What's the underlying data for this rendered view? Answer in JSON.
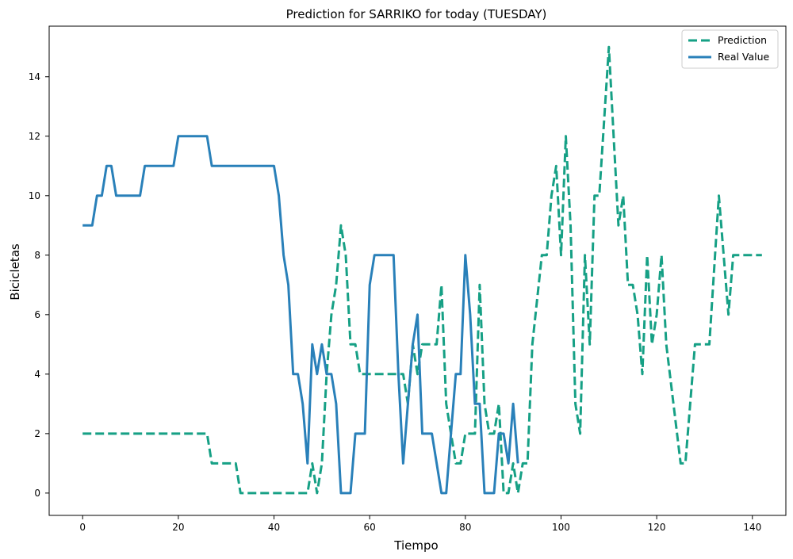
{
  "chart_data": {
    "type": "line",
    "title": "Prediction for SARRIKO for today (TUESDAY)",
    "xlabel": "Tiempo",
    "ylabel": "Bicicletas",
    "xlim": [
      -7,
      147
    ],
    "ylim": [
      -0.75,
      15.7
    ],
    "xticks": [
      0,
      20,
      40,
      60,
      80,
      100,
      120,
      140
    ],
    "yticks": [
      0,
      2,
      4,
      6,
      8,
      10,
      12,
      14
    ],
    "grid": false,
    "legend_position": "top-right",
    "series": [
      {
        "name": "Prediction",
        "color": "#16a085",
        "style": "dashed",
        "points": [
          [
            0,
            2
          ],
          [
            26,
            2
          ],
          [
            27,
            1
          ],
          [
            32,
            1
          ],
          [
            33,
            0
          ],
          [
            46,
            0
          ],
          [
            47,
            0
          ],
          [
            48,
            1
          ],
          [
            49,
            0
          ],
          [
            50,
            1
          ],
          [
            51,
            4
          ],
          [
            52,
            6
          ],
          [
            53,
            7
          ],
          [
            54,
            9
          ],
          [
            55,
            8
          ],
          [
            56,
            5
          ],
          [
            57,
            5
          ],
          [
            58,
            4
          ],
          [
            67,
            4
          ],
          [
            68,
            3
          ],
          [
            69,
            5
          ],
          [
            70,
            4
          ],
          [
            71,
            5
          ],
          [
            74,
            5
          ],
          [
            75,
            7
          ],
          [
            76,
            3
          ],
          [
            77,
            2
          ],
          [
            78,
            1
          ],
          [
            79,
            1
          ],
          [
            80,
            2
          ],
          [
            82,
            2
          ],
          [
            83,
            7
          ],
          [
            84,
            3
          ],
          [
            85,
            2
          ],
          [
            86,
            2
          ],
          [
            87,
            3
          ],
          [
            88,
            0
          ],
          [
            89,
            0
          ],
          [
            90,
            1
          ],
          [
            91,
            0
          ],
          [
            92,
            1
          ],
          [
            93,
            1
          ],
          [
            94,
            5
          ],
          [
            96,
            8
          ],
          [
            97,
            8
          ],
          [
            98,
            10
          ],
          [
            99,
            11
          ],
          [
            100,
            8
          ],
          [
            101,
            12
          ],
          [
            102,
            9
          ],
          [
            103,
            3
          ],
          [
            104,
            2
          ],
          [
            105,
            8
          ],
          [
            106,
            5
          ],
          [
            107,
            10
          ],
          [
            108,
            10
          ],
          [
            110,
            15
          ],
          [
            111,
            12
          ],
          [
            112,
            9
          ],
          [
            113,
            10
          ],
          [
            114,
            7
          ],
          [
            115,
            7
          ],
          [
            116,
            6
          ],
          [
            117,
            4
          ],
          [
            118,
            8
          ],
          [
            119,
            5
          ],
          [
            120,
            6
          ],
          [
            121,
            8
          ],
          [
            122,
            5
          ],
          [
            125,
            1
          ],
          [
            126,
            1
          ],
          [
            128,
            5
          ],
          [
            130,
            5
          ],
          [
            131,
            5
          ],
          [
            133,
            10
          ],
          [
            135,
            6
          ],
          [
            136,
            8
          ],
          [
            142,
            8
          ]
        ]
      },
      {
        "name": "Real Value",
        "color": "#2980b9",
        "style": "solid",
        "points": [
          [
            0,
            9
          ],
          [
            2,
            9
          ],
          [
            3,
            10
          ],
          [
            4,
            10
          ],
          [
            5,
            11
          ],
          [
            6,
            11
          ],
          [
            7,
            10
          ],
          [
            12,
            10
          ],
          [
            13,
            11
          ],
          [
            19,
            11
          ],
          [
            20,
            12
          ],
          [
            26,
            12
          ],
          [
            27,
            11
          ],
          [
            40,
            11
          ],
          [
            41,
            10
          ],
          [
            42,
            8
          ],
          [
            43,
            7
          ],
          [
            44,
            4
          ],
          [
            45,
            4
          ],
          [
            46,
            3
          ],
          [
            47,
            1
          ],
          [
            48,
            5
          ],
          [
            49,
            4
          ],
          [
            50,
            5
          ],
          [
            51,
            4
          ],
          [
            52,
            4
          ],
          [
            53,
            3
          ],
          [
            54,
            0
          ],
          [
            56,
            0
          ],
          [
            57,
            2
          ],
          [
            59,
            2
          ],
          [
            60,
            7
          ],
          [
            61,
            8
          ],
          [
            65,
            8
          ],
          [
            66,
            4
          ],
          [
            67,
            1
          ],
          [
            68,
            3
          ],
          [
            69,
            5
          ],
          [
            70,
            6
          ],
          [
            71,
            2
          ],
          [
            73,
            2
          ],
          [
            75,
            0
          ],
          [
            76,
            0
          ],
          [
            77,
            2
          ],
          [
            78,
            4
          ],
          [
            79,
            4
          ],
          [
            80,
            8
          ],
          [
            81,
            6
          ],
          [
            82,
            3
          ],
          [
            83,
            3
          ],
          [
            84,
            0
          ],
          [
            86,
            0
          ],
          [
            87,
            2
          ],
          [
            88,
            2
          ],
          [
            89,
            1
          ],
          [
            90,
            3
          ],
          [
            91,
            1
          ]
        ]
      }
    ]
  }
}
